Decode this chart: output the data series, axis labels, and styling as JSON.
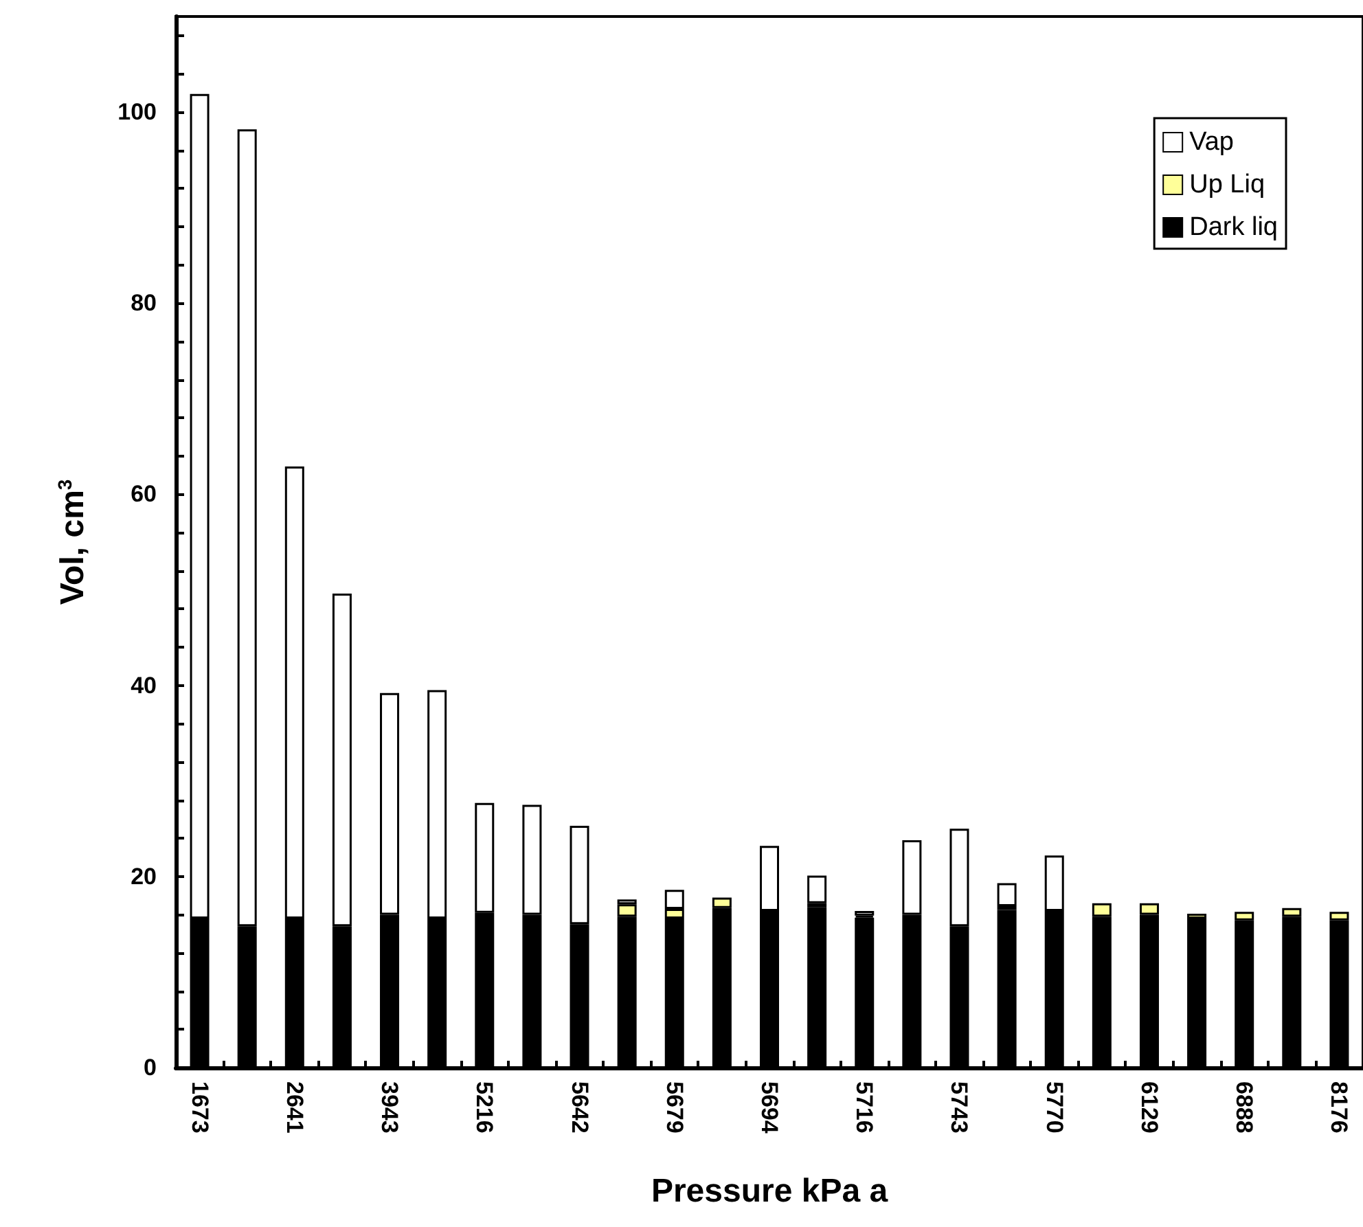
{
  "chart_data": {
    "type": "bar",
    "stacked": true,
    "xlabel": "Pressure kPa a",
    "ylabel": "Vol, cm$^{3}$",
    "categories": [
      "1673",
      null,
      "2641",
      null,
      "3943",
      null,
      "5216",
      null,
      "5642",
      null,
      "5679",
      null,
      "5694",
      null,
      "5716",
      null,
      "5743",
      null,
      "5770",
      null,
      "6129",
      null,
      "6888",
      null,
      "8176"
    ],
    "series": [
      {
        "name": "Dark liq",
        "color": "#000000",
        "values": [
          15.6,
          14.8,
          15.6,
          14.8,
          16.0,
          15.6,
          16.2,
          16.0,
          15.0,
          15.8,
          15.6,
          16.7,
          16.4,
          16.8,
          15.7,
          16.0,
          14.8,
          16.5,
          16.4,
          15.8,
          16.0,
          15.6,
          15.4,
          15.8,
          15.4
        ]
      },
      {
        "name": "Up Liq",
        "color": "#ffff99",
        "values": [
          null,
          null,
          null,
          null,
          null,
          null,
          null,
          null,
          null,
          1.3,
          1.0,
          1.1,
          null,
          0.4,
          0.2,
          null,
          null,
          0.4,
          null,
          1.4,
          1.2,
          0.5,
          0.9,
          0.9,
          0.9
        ]
      },
      {
        "name": "Vap",
        "color": "#ffffff",
        "values": [
          86.3,
          83.4,
          47.3,
          34.8,
          23.2,
          23.9,
          11.5,
          11.5,
          10.3,
          0.5,
          2.0,
          null,
          6.8,
          2.9,
          0.5,
          7.8,
          10.2,
          2.4,
          5.8,
          null,
          null,
          null,
          null,
          null,
          null
        ]
      }
    ],
    "ylim": [
      0,
      110
    ],
    "yticks": [
      0,
      {
        "value": 4,
        "label": null
      },
      {
        "value": 8,
        "label": null
      },
      {
        "value": 12,
        "label": null
      },
      {
        "value": 16,
        "label": null
      },
      20,
      {
        "value": 24,
        "label": null
      },
      {
        "value": 28,
        "label": null
      },
      {
        "value": 32,
        "label": null
      },
      {
        "value": 36,
        "label": null
      },
      40,
      {
        "value": 44,
        "label": null
      },
      {
        "value": 48,
        "label": null
      },
      {
        "value": 52,
        "label": null
      },
      {
        "value": 56,
        "label": null
      },
      60,
      {
        "value": 64,
        "label": null
      },
      {
        "value": 68,
        "label": null
      },
      {
        "value": 72,
        "label": null
      },
      {
        "value": 76,
        "label": null
      },
      80,
      {
        "value": 84,
        "label": null
      },
      {
        "value": 88,
        "label": null
      },
      {
        "value": 92,
        "label": null
      },
      {
        "value": 96,
        "label": null
      },
      100,
      {
        "value": 104,
        "label": null
      },
      {
        "value": 108,
        "label": null
      }
    ],
    "grid": false,
    "legend": "top right"
  }
}
